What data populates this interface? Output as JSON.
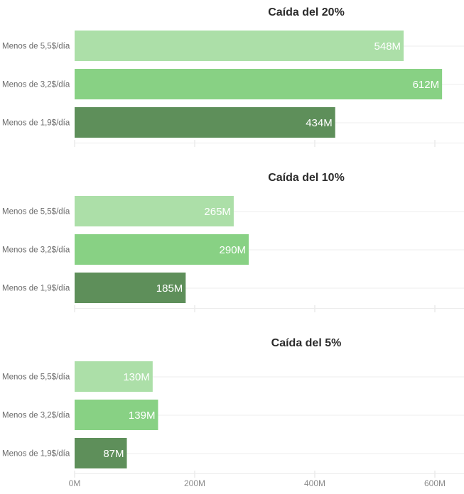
{
  "chart_data": {
    "type": "bar",
    "orientation": "horizontal",
    "unit_suffix": "M",
    "xlim": [
      0,
      650
    ],
    "x_ticks": [
      "0M",
      "200M",
      "400M",
      "600M"
    ],
    "x_tick_values": [
      0,
      200,
      400,
      600
    ],
    "categories": [
      "Menos de 5,5$/día",
      "Menos de 3,2$/día",
      "Menos de 1,9$/día"
    ],
    "colors": [
      "#acdfa8",
      "#88d184",
      "#5e8f5a"
    ],
    "panels": [
      {
        "title": "Caída del 20%",
        "values": [
          548,
          612,
          434
        ],
        "labels": [
          "548M",
          "612M",
          "434M"
        ]
      },
      {
        "title": "Caída del 10%",
        "values": [
          265,
          290,
          185
        ],
        "labels": [
          "265M",
          "290M",
          "185M"
        ]
      },
      {
        "title": "Caída del 5%",
        "values": [
          130,
          139,
          87
        ],
        "labels": [
          "130M",
          "139M",
          "87M"
        ]
      }
    ]
  }
}
